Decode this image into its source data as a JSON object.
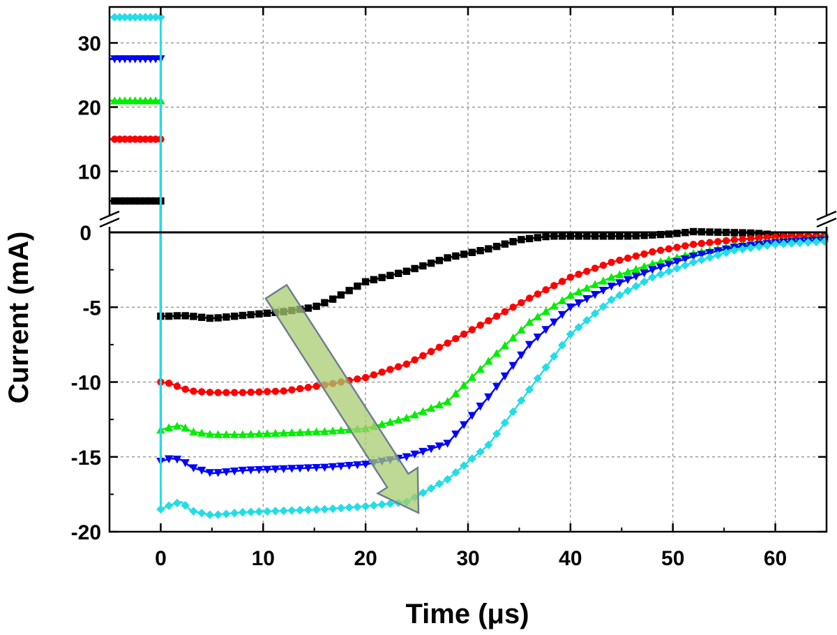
{
  "chart_data": {
    "type": "line",
    "xlabel": "Time (μs)",
    "ylabel": "Current (mA)",
    "xlim": [
      -5,
      65
    ],
    "x_ticks": [
      "0",
      "10",
      "20",
      "30",
      "40",
      "50",
      "60"
    ],
    "grid": true,
    "y_axis_break": {
      "upper_panel": {
        "ylim": [
          5,
          35
        ],
        "y_ticks": [
          "30",
          "20",
          "10"
        ],
        "zero_label": "0"
      },
      "lower_panel": {
        "ylim": [
          -20,
          0
        ],
        "y_ticks": [
          "-5",
          "-10",
          "-15",
          "-20"
        ]
      }
    },
    "series": [
      {
        "color": "#000000",
        "marker": "square",
        "pre_pulse_level": 5,
        "x": [
          0,
          1,
          2,
          3,
          5,
          8,
          12,
          15,
          17,
          20,
          24,
          28,
          32,
          35,
          38,
          42,
          46,
          50,
          52,
          55,
          58,
          62,
          65
        ],
        "y": [
          -5.6,
          -5.6,
          -5.55,
          -5.6,
          -5.75,
          -5.55,
          -5.3,
          -5.0,
          -4.4,
          -3.3,
          -2.6,
          -1.7,
          -1.1,
          -0.5,
          -0.25,
          -0.25,
          -0.25,
          -0.1,
          0.05,
          0.0,
          -0.05,
          -0.3,
          -0.4
        ]
      },
      {
        "color": "#ff0000",
        "marker": "circle",
        "pre_pulse_level": 15,
        "x": [
          0,
          1,
          2,
          3,
          5,
          8,
          12,
          16,
          20,
          24,
          28,
          32,
          36,
          40,
          44,
          48,
          52,
          56,
          60,
          65
        ],
        "y": [
          -10.0,
          -10.1,
          -10.4,
          -10.6,
          -10.7,
          -10.7,
          -10.6,
          -10.2,
          -9.7,
          -8.8,
          -7.4,
          -5.9,
          -4.4,
          -3.0,
          -2.0,
          -1.3,
          -0.8,
          -0.5,
          -0.3,
          -0.2
        ]
      },
      {
        "color": "#00ee00",
        "marker": "triangle-up",
        "pre_pulse_level": 21,
        "x": [
          0,
          1,
          2,
          3,
          5,
          8,
          12,
          16,
          20,
          24,
          28,
          32,
          36,
          40,
          44,
          48,
          52,
          56,
          60,
          65
        ],
        "y": [
          -13.2,
          -13.0,
          -12.9,
          -13.3,
          -13.5,
          -13.5,
          -13.4,
          -13.3,
          -13.1,
          -12.4,
          -11.3,
          -8.6,
          -6.0,
          -4.2,
          -3.0,
          -2.1,
          -1.4,
          -0.9,
          -0.6,
          -0.4
        ]
      },
      {
        "color": "#0000ff",
        "marker": "triangle-down",
        "pre_pulse_level": 27.5,
        "x": [
          0,
          1,
          2,
          3,
          5,
          8,
          12,
          16,
          20,
          24,
          28,
          32,
          36,
          40,
          44,
          48,
          52,
          56,
          60,
          65
        ],
        "y": [
          -15.3,
          -15.1,
          -15.2,
          -15.7,
          -16.1,
          -15.9,
          -15.8,
          -15.7,
          -15.5,
          -15.0,
          -14.1,
          -11.0,
          -7.5,
          -5.0,
          -3.6,
          -2.5,
          -1.6,
          -1.0,
          -0.7,
          -0.5
        ]
      },
      {
        "color": "#22dde8",
        "marker": "diamond",
        "pre_pulse_level": 34,
        "x": [
          0,
          1,
          2,
          3,
          5,
          8,
          12,
          16,
          20,
          24,
          28,
          32,
          36,
          40,
          44,
          48,
          52,
          56,
          60,
          65
        ],
        "y": [
          -18.5,
          -18.2,
          -18.0,
          -18.6,
          -18.9,
          -18.7,
          -18.6,
          -18.5,
          -18.3,
          -18.0,
          -16.5,
          -14.2,
          -10.5,
          -6.8,
          -4.5,
          -3.0,
          -2.0,
          -1.2,
          -0.8,
          -0.6
        ]
      }
    ],
    "annotations": [
      {
        "type": "arrow",
        "color": "#a8cc6f",
        "direction": "down-right"
      }
    ]
  }
}
